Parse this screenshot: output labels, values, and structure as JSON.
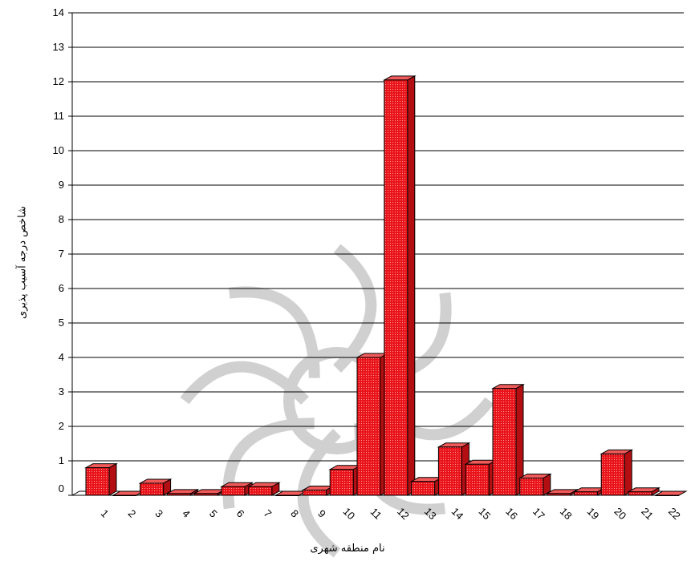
{
  "chart_data": {
    "type": "bar",
    "categories": [
      "1",
      "2",
      "3",
      "4",
      "5",
      "6",
      "7",
      "8",
      "9",
      "10",
      "11",
      "12",
      "13",
      "14",
      "15",
      "16",
      "17",
      "18",
      "19",
      "20",
      "21",
      "22"
    ],
    "values": [
      0.8,
      0.0,
      0.35,
      0.05,
      0.05,
      0.25,
      0.25,
      0.0,
      0.15,
      0.75,
      4.0,
      12.05,
      0.4,
      1.4,
      0.9,
      3.1,
      0.5,
      0.05,
      0.1,
      1.2,
      0.1,
      0.0
    ],
    "yticks": [
      "0",
      "1",
      "2",
      "3",
      "4",
      "5",
      "6",
      "7",
      "8",
      "9",
      "10",
      "11",
      "12",
      "13",
      "14"
    ],
    "ylim": [
      0,
      14
    ],
    "xlabel": "نام منطقه شهری",
    "ylabel": "شاخص درجه آسیب پذیری",
    "title": "",
    "grid": true,
    "bar_color": "#e8141a",
    "bar_side_color": "#b30f12",
    "bar_top_color": "#f05a5a"
  }
}
